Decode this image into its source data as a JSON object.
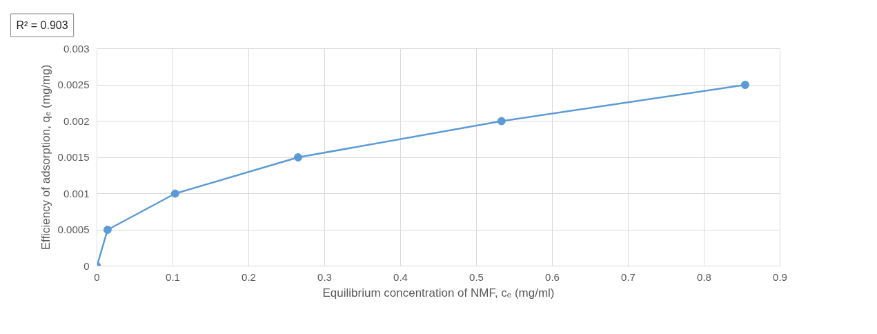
{
  "chart_data": {
    "type": "line",
    "xlabel": "Equilibrium concentration of NMF, cₑ (mg/ml)",
    "ylabel": "Efficiency of adsorption, qₑ (mg/mg)",
    "annotations": [
      "R² = 0.903"
    ],
    "x": [
      0,
      0.014,
      0.103,
      0.265,
      0.533,
      0.854
    ],
    "series": [
      {
        "color": "#5b9bd5",
        "values": [
          0,
          0.0005,
          0.001,
          0.0015,
          0.002,
          0.0025
        ]
      }
    ],
    "xlim": [
      0,
      0.9
    ],
    "xticks": [
      0,
      0.1,
      0.2,
      0.3,
      0.4,
      0.5,
      0.6,
      0.7,
      0.8,
      0.9
    ],
    "ylim": [
      0,
      0.003
    ],
    "yticks": [
      0,
      0.0005,
      0.001,
      0.0015,
      0.002,
      0.0025,
      0.003
    ],
    "grid": true,
    "marker": "circle",
    "line_style": "solid"
  }
}
